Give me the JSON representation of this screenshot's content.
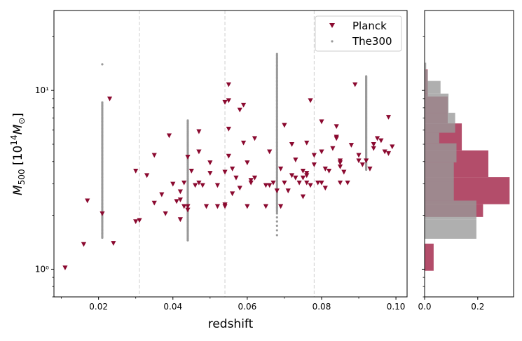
{
  "chart_data": [
    {
      "type": "scatter",
      "xlabel": "redshift",
      "ylabel_main": "M",
      "ylabel_sub": "500",
      "ylabel_unit_prefix": " [10",
      "ylabel_unit_exp": "14",
      "ylabel_unit_M": "M",
      "ylabel_unit_sub": "⊙",
      "ylabel_unit_suffix": "]",
      "xlim": [
        0.008,
        0.103
      ],
      "ylim": [
        0.7,
        28
      ],
      "yscale": "log",
      "x_ticks": [
        0.02,
        0.04,
        0.06,
        0.08,
        0.1
      ],
      "x_tick_labels": [
        "0.02",
        "0.04",
        "0.06",
        "0.08",
        "0.10"
      ],
      "y_major_ticks": [
        1,
        10
      ],
      "y_tick_labels": [
        "10⁰",
        "10¹"
      ],
      "vlines": [
        0.031,
        0.054,
        0.078
      ],
      "grid": false,
      "legend_position": "top-right",
      "series": [
        {
          "name": "Planck",
          "marker": "triangle-down",
          "color": "#8b0a30",
          "points": [
            [
              0.011,
              1.02
            ],
            [
              0.016,
              1.38
            ],
            [
              0.017,
              2.42
            ],
            [
              0.021,
              2.05
            ],
            [
              0.023,
              9.0
            ],
            [
              0.024,
              1.4
            ],
            [
              0.03,
              3.55
            ],
            [
              0.03,
              1.85
            ],
            [
              0.031,
              1.88
            ],
            [
              0.033,
              3.35
            ],
            [
              0.035,
              4.35
            ],
            [
              0.035,
              2.35
            ],
            [
              0.037,
              2.62
            ],
            [
              0.038,
              2.05
            ],
            [
              0.039,
              5.6
            ],
            [
              0.04,
              3.0
            ],
            [
              0.041,
              2.4
            ],
            [
              0.042,
              2.45
            ],
            [
              0.042,
              2.72
            ],
            [
              0.042,
              1.9
            ],
            [
              0.043,
              2.25
            ],
            [
              0.043,
              3.05
            ],
            [
              0.044,
              4.25
            ],
            [
              0.044,
              2.15
            ],
            [
              0.044,
              2.25
            ],
            [
              0.045,
              3.55
            ],
            [
              0.046,
              2.95
            ],
            [
              0.047,
              4.55
            ],
            [
              0.047,
              3.05
            ],
            [
              0.047,
              5.9
            ],
            [
              0.048,
              2.95
            ],
            [
              0.049,
              2.25
            ],
            [
              0.05,
              3.95
            ],
            [
              0.05,
              3.45
            ],
            [
              0.052,
              2.25
            ],
            [
              0.052,
              2.95
            ],
            [
              0.054,
              2.25
            ],
            [
              0.054,
              2.3
            ],
            [
              0.054,
              3.5
            ],
            [
              0.054,
              8.6
            ],
            [
              0.055,
              10.8
            ],
            [
              0.055,
              8.8
            ],
            [
              0.055,
              6.1
            ],
            [
              0.055,
              4.3
            ],
            [
              0.056,
              3.65
            ],
            [
              0.056,
              2.65
            ],
            [
              0.057,
              3.25
            ],
            [
              0.058,
              7.8
            ],
            [
              0.058,
              2.85
            ],
            [
              0.059,
              5.1
            ],
            [
              0.059,
              8.3
            ],
            [
              0.06,
              3.95
            ],
            [
              0.06,
              2.25
            ],
            [
              0.061,
              3.15
            ],
            [
              0.061,
              3.05
            ],
            [
              0.062,
              5.4
            ],
            [
              0.062,
              3.25
            ],
            [
              0.065,
              2.95
            ],
            [
              0.065,
              2.25
            ],
            [
              0.066,
              4.55
            ],
            [
              0.066,
              2.95
            ],
            [
              0.067,
              3.05
            ],
            [
              0.068,
              2.75
            ],
            [
              0.069,
              3.65
            ],
            [
              0.069,
              2.25
            ],
            [
              0.07,
              3.05
            ],
            [
              0.07,
              6.4
            ],
            [
              0.071,
              2.75
            ],
            [
              0.072,
              5.0
            ],
            [
              0.072,
              3.35
            ],
            [
              0.073,
              4.1
            ],
            [
              0.073,
              3.25
            ],
            [
              0.074,
              3.05
            ],
            [
              0.075,
              2.55
            ],
            [
              0.075,
              3.25
            ],
            [
              0.075,
              3.55
            ],
            [
              0.076,
              3.35
            ],
            [
              0.076,
              3.05
            ],
            [
              0.076,
              3.45
            ],
            [
              0.076,
              5.1
            ],
            [
              0.077,
              8.8
            ],
            [
              0.077,
              2.95
            ],
            [
              0.078,
              4.35
            ],
            [
              0.078,
              3.85
            ],
            [
              0.079,
              3.05
            ],
            [
              0.08,
              3.05
            ],
            [
              0.08,
              4.55
            ],
            [
              0.08,
              6.7
            ],
            [
              0.081,
              2.85
            ],
            [
              0.081,
              3.65
            ],
            [
              0.082,
              3.55
            ],
            [
              0.083,
              4.75
            ],
            [
              0.084,
              5.5
            ],
            [
              0.084,
              6.3
            ],
            [
              0.084,
              5.4
            ],
            [
              0.085,
              4.05
            ],
            [
              0.085,
              3.05
            ],
            [
              0.085,
              3.95
            ],
            [
              0.085,
              3.75
            ],
            [
              0.086,
              3.5
            ],
            [
              0.087,
              3.05
            ],
            [
              0.088,
              4.95
            ],
            [
              0.089,
              10.8
            ],
            [
              0.09,
              4.35
            ],
            [
              0.09,
              4.05
            ],
            [
              0.091,
              3.85
            ],
            [
              0.092,
              4.05
            ],
            [
              0.093,
              3.65
            ],
            [
              0.094,
              5.0
            ],
            [
              0.094,
              4.75
            ],
            [
              0.095,
              5.4
            ],
            [
              0.096,
              5.25
            ],
            [
              0.097,
              4.55
            ],
            [
              0.098,
              7.1
            ],
            [
              0.098,
              4.45
            ],
            [
              0.099,
              4.85
            ]
          ]
        },
        {
          "name": "The300",
          "marker": "point",
          "color": "#999999",
          "columns": [
            {
              "x": 0.021,
              "ymin": 1.5,
              "ymax": 10.4,
              "gap": [
                8.6,
                13.6
              ],
              "extra": [
                14.0
              ]
            },
            {
              "x": 0.044,
              "ymin": 1.45,
              "ymax": 6.8,
              "extra": []
            },
            {
              "x": 0.068,
              "ymin": 2.05,
              "ymax": 16.0,
              "extra": [
                1.55,
                1.65,
                1.75,
                1.85,
                1.95
              ]
            },
            {
              "x": 0.092,
              "ymin": 3.6,
              "ymax": 12.0,
              "extra": []
            }
          ]
        }
      ]
    },
    {
      "type": "bar",
      "orientation": "horizontal",
      "xlim": [
        0,
        0.335
      ],
      "x_ticks": [
        0.0,
        0.2
      ],
      "x_tick_labels": [
        "0.0",
        "0.2"
      ],
      "series": [
        {
          "name": "Planck",
          "color": "#b34d6a",
          "bins": [
            {
              "ylo": 0.98,
              "yhi": 1.39,
              "value": 0.034
            },
            {
              "ylo": 1.39,
              "yhi": 1.96,
              "value": 0.0
            },
            {
              "ylo": 1.96,
              "yhi": 2.31,
              "value": 0.22
            },
            {
              "ylo": 2.31,
              "yhi": 3.27,
              "value": 0.32
            },
            {
              "ylo": 3.27,
              "yhi": 4.62,
              "value": 0.24
            },
            {
              "ylo": 4.62,
              "yhi": 6.54,
              "value": 0.14
            },
            {
              "ylo": 6.54,
              "yhi": 9.25,
              "value": 0.087
            },
            {
              "ylo": 9.25,
              "yhi": 13.1,
              "value": 0.012
            }
          ]
        },
        {
          "name": "The300",
          "color": "#999999",
          "bins": [
            {
              "ylo": 1.48,
              "yhi": 1.9,
              "value": 0.195
            },
            {
              "ylo": 1.9,
              "yhi": 2.42,
              "value": 0.195
            },
            {
              "ylo": 2.42,
              "yhi": 3.1,
              "value": 0.11
            },
            {
              "ylo": 3.1,
              "yhi": 3.96,
              "value": 0.11
            },
            {
              "ylo": 3.96,
              "yhi": 5.06,
              "value": 0.12
            },
            {
              "ylo": 5.06,
              "yhi": 5.8,
              "value": 0.055
            },
            {
              "ylo": 5.8,
              "yhi": 7.5,
              "value": 0.115
            },
            {
              "ylo": 7.5,
              "yhi": 9.6,
              "value": 0.09
            },
            {
              "ylo": 9.6,
              "yhi": 11.3,
              "value": 0.06
            },
            {
              "ylo": 11.3,
              "yhi": 13.0,
              "value": 0.012
            },
            {
              "ylo": 13.0,
              "yhi": 14.3,
              "value": 0.006
            }
          ]
        }
      ]
    }
  ]
}
